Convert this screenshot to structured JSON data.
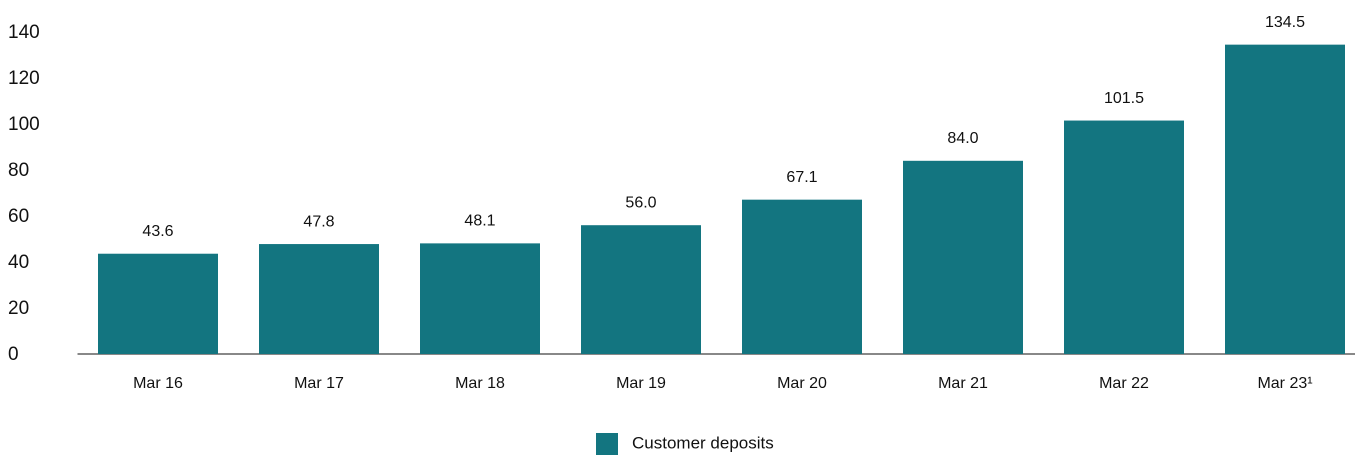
{
  "chart_data": {
    "type": "bar",
    "categories": [
      "Mar 16",
      "Mar 17",
      "Mar 18",
      "Mar 19",
      "Mar 20",
      "Mar 21",
      "Mar 22",
      "Mar 23¹"
    ],
    "series": [
      {
        "name": "Customer deposits",
        "color": "#137580",
        "values": [
          43.6,
          47.8,
          48.1,
          56.0,
          67.1,
          84.0,
          101.5,
          134.5
        ],
        "value_labels": [
          "43.6",
          "47.8",
          "48.1",
          "56.0",
          "67.1",
          "84.0",
          "101.5",
          "134.5"
        ]
      }
    ],
    "ylim": [
      0,
      140
    ],
    "yticks": [
      0,
      20,
      40,
      60,
      80,
      100,
      120,
      140
    ],
    "grid": false,
    "legend": "bottom"
  }
}
